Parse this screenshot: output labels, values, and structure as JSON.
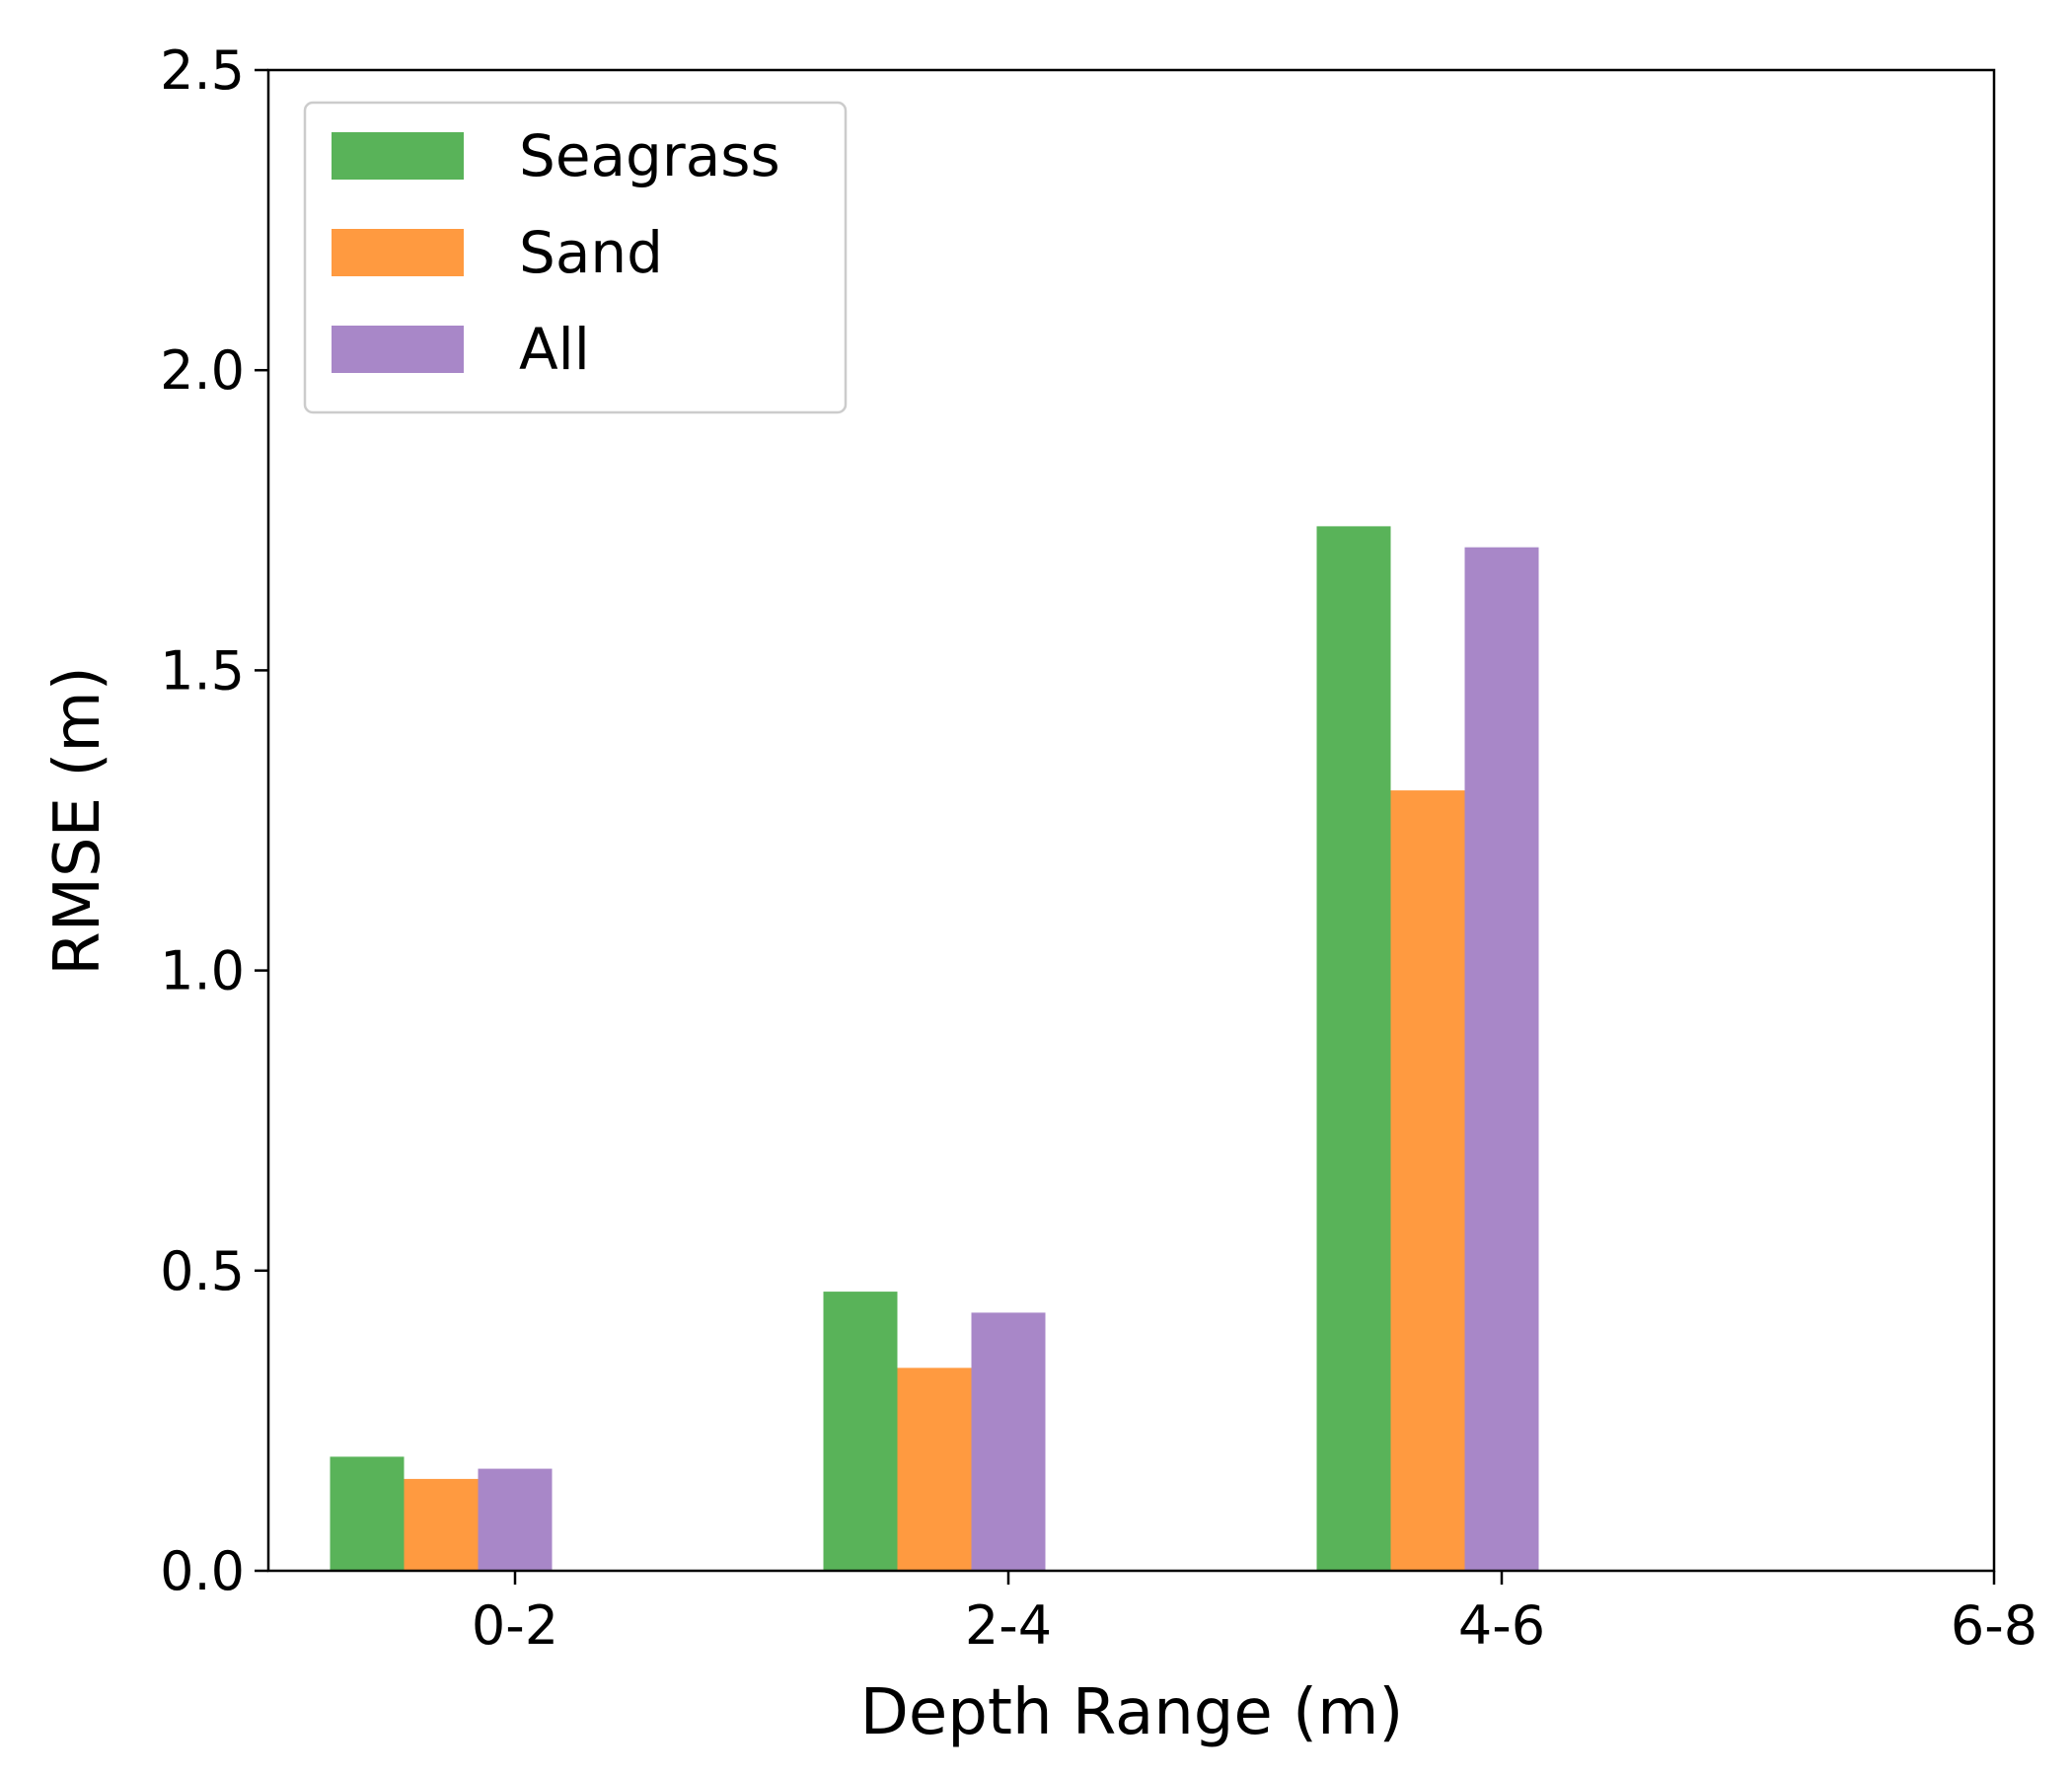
{
  "chart_data": {
    "type": "bar",
    "title": "",
    "xlabel": "Depth Range (m)",
    "ylabel": "RMSE (m)",
    "categories": [
      "0-2",
      "2-4",
      "4-6",
      "6-8"
    ],
    "ylim": [
      0,
      2.5
    ],
    "yticks": [
      "0.0",
      "0.5",
      "1.0",
      "1.5",
      "2.0",
      "2.5"
    ],
    "grid": false,
    "legend_position": "top-left",
    "series": [
      {
        "name": "Seagrass",
        "color": "#59b359",
        "values": [
          0.19,
          0.465,
          1.74,
          null
        ]
      },
      {
        "name": "Sand",
        "color": "#ff9a40",
        "values": [
          0.153,
          0.338,
          1.3,
          null
        ]
      },
      {
        "name": "All",
        "color": "#a887c8",
        "values": [
          0.17,
          0.43,
          1.705,
          null
        ]
      }
    ]
  }
}
